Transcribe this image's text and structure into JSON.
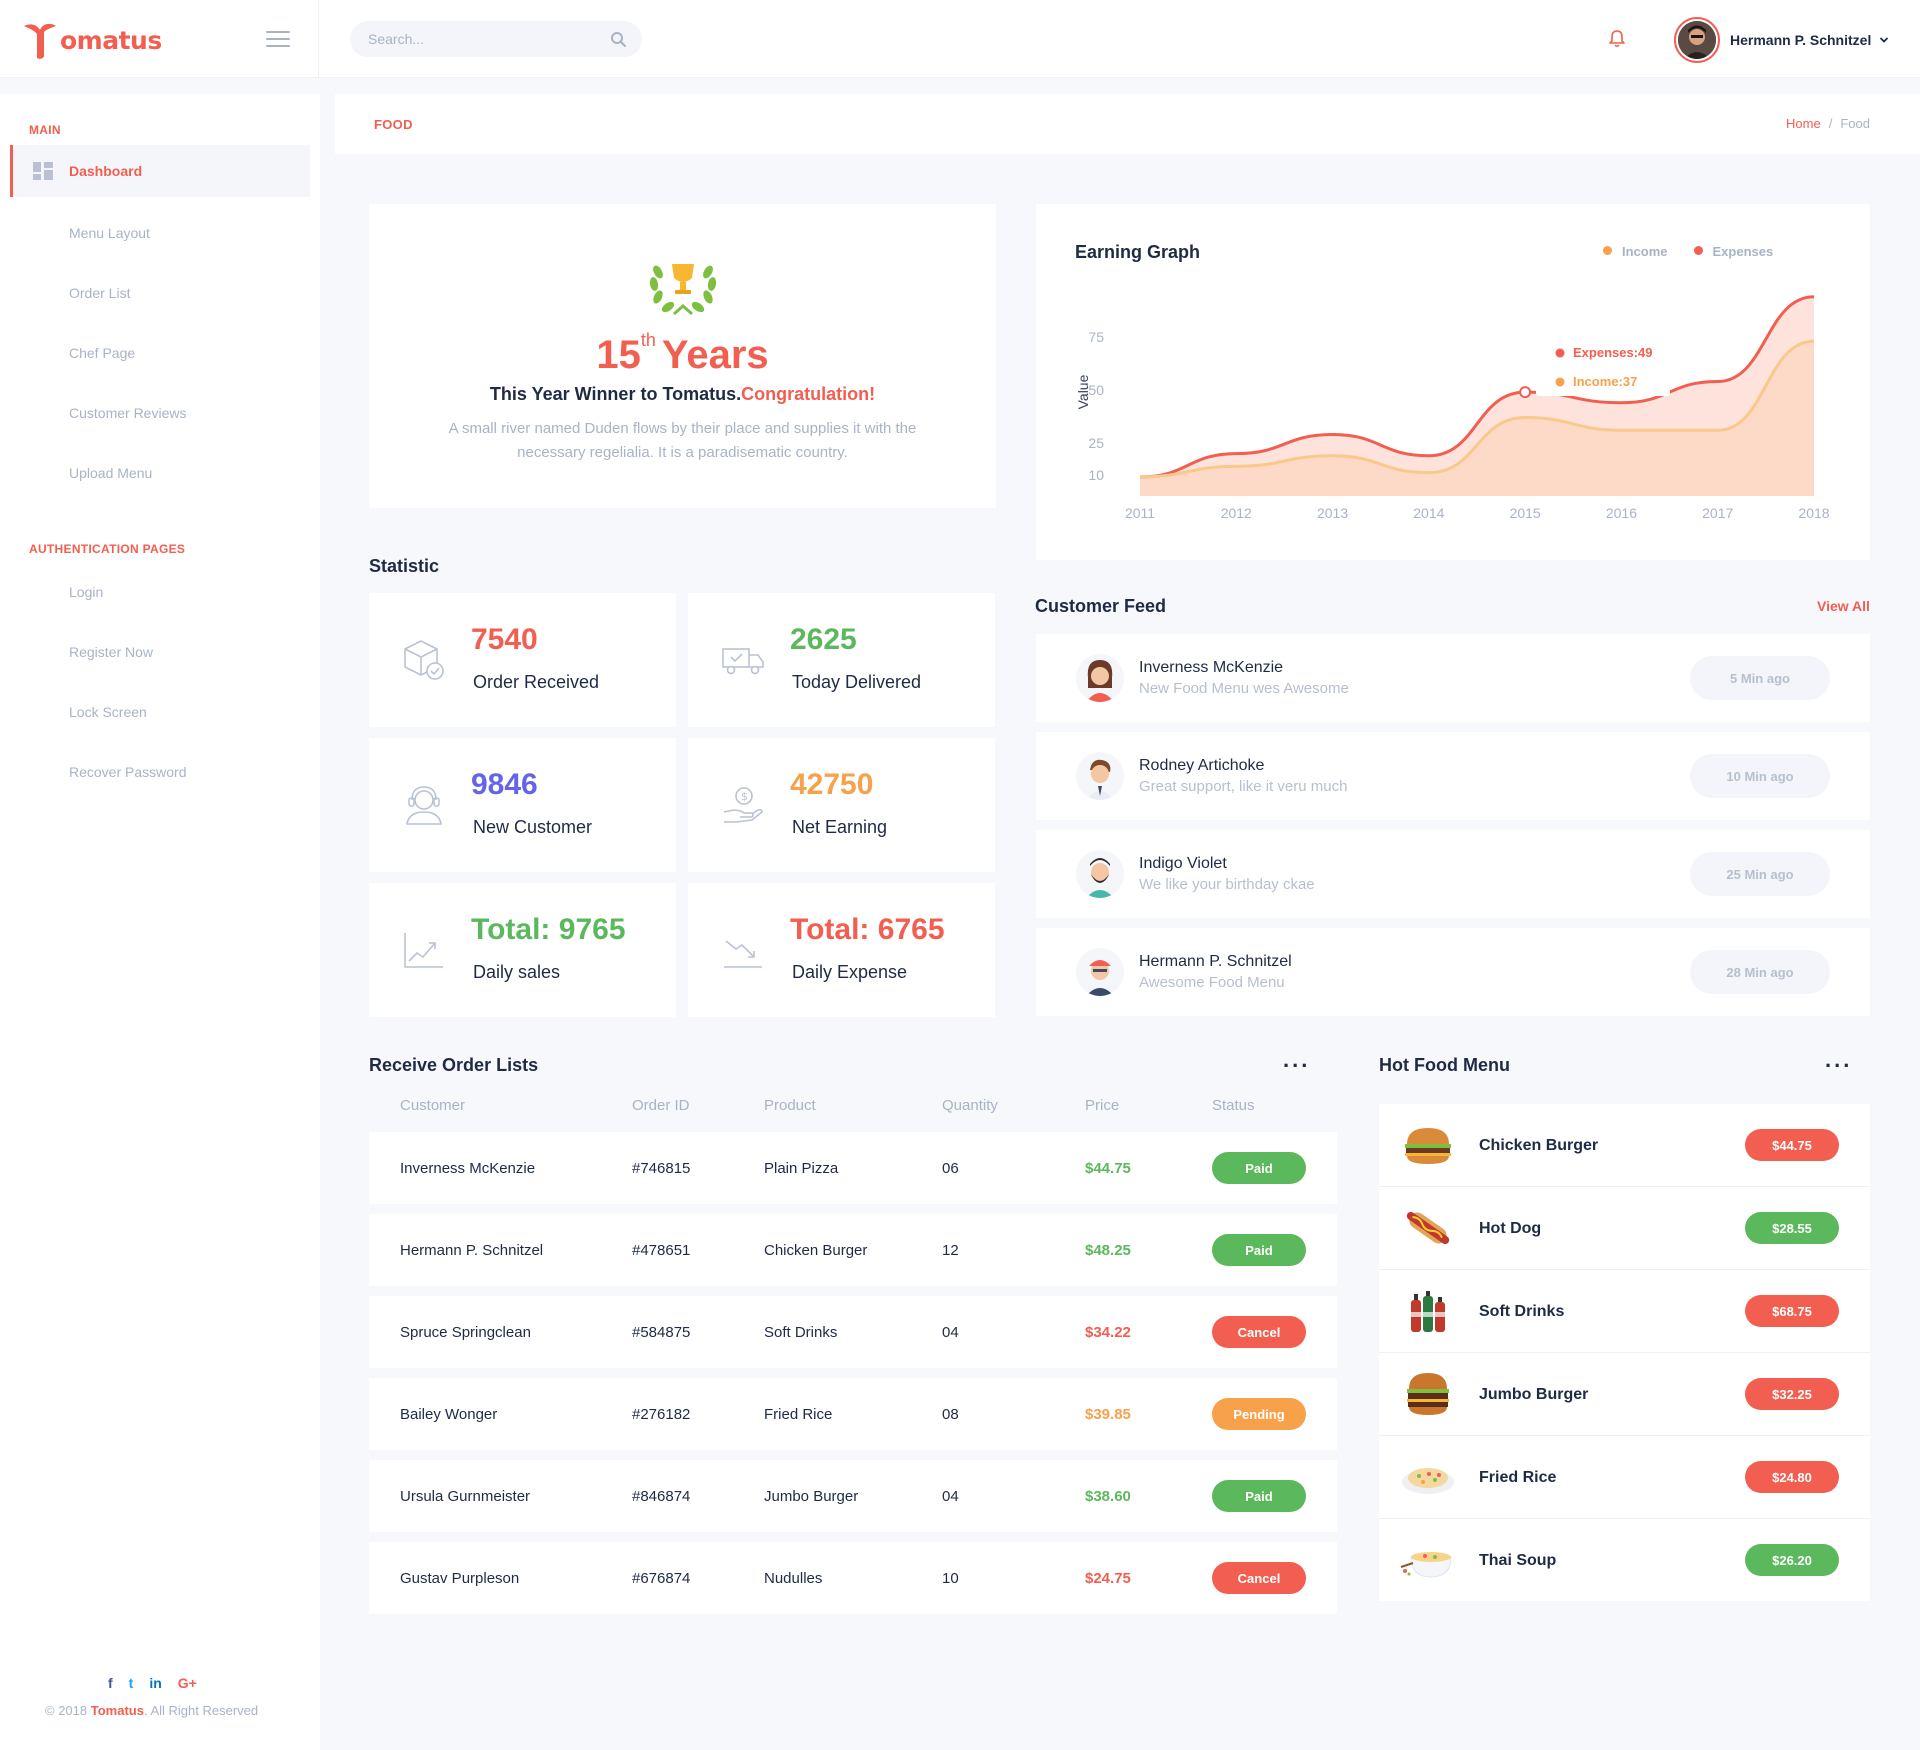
{
  "brand": {
    "name": "omatus"
  },
  "header": {
    "search_placeholder": "Search...",
    "user_name": "Hermann P. Schnitzel"
  },
  "sidebar": {
    "main_heading": "MAIN",
    "items": [
      {
        "label": "Dashboard"
      },
      {
        "label": "Menu Layout"
      },
      {
        "label": "Order List"
      },
      {
        "label": "Chef Page"
      },
      {
        "label": "Customer Reviews"
      },
      {
        "label": "Upload Menu"
      }
    ],
    "auth_heading": "AUTHENTICATION PAGES",
    "auth_items": [
      {
        "label": "Login"
      },
      {
        "label": "Register Now"
      },
      {
        "label": "Lock Screen"
      },
      {
        "label": "Recover Password"
      }
    ],
    "socials": {
      "facebook": "f",
      "twitter": "t",
      "linkedin": "in",
      "google": "G+"
    },
    "copyright_prefix": "© 2018 ",
    "copyright_brand": "Tomatus",
    "copyright_suffix": ". All Right Reserved"
  },
  "breadcrumb": {
    "title": "FOOD",
    "home": "Home",
    "sep": "/",
    "current": "Food"
  },
  "winner": {
    "number": "15",
    "suffix": "th",
    "years": "Years",
    "line": "This Year Winner to Tomatus.",
    "highlight": "Congratulation!",
    "description": "A small river named Duden flows by their place and supplies it with the necessary regelialia. It is a paradisematic country."
  },
  "chart_data": {
    "type": "area",
    "title": "Earning Graph",
    "ylabel": "Value",
    "x": [
      "2011",
      "2012",
      "2013",
      "2014",
      "2015",
      "2016",
      "2017",
      "2018"
    ],
    "yticks": [
      "75",
      "50",
      "25",
      "10"
    ],
    "series": [
      {
        "name": "Income",
        "color": "#f7a14b",
        "values": [
          9,
          14,
          19,
          11,
          37,
          31,
          31,
          73
        ]
      },
      {
        "name": "Expenses",
        "color": "#f25e50",
        "values": [
          9,
          20,
          29,
          19,
          49,
          44,
          54,
          94
        ]
      }
    ],
    "tooltip": {
      "expenses": "Expenses:49",
      "income": "Income:37"
    },
    "ylim": [
      0,
      100
    ]
  },
  "statistic": {
    "heading": "Statistic",
    "items": [
      {
        "value": "7540",
        "label": "Order Received",
        "color": "#f25e50",
        "icon": "box-icon"
      },
      {
        "value": "2625",
        "label": "Today Delivered",
        "color": "#5cb85c",
        "icon": "truck-icon"
      },
      {
        "value": "9846",
        "label": "New Customer",
        "color": "#6563e8",
        "icon": "headset-icon"
      },
      {
        "value": "42750",
        "label": "Net Earning",
        "color": "#f7a14b",
        "icon": "money-hand-icon"
      },
      {
        "value": "Total: 9765",
        "label": "Daily sales",
        "color": "#5cb85c",
        "icon": "trend-up-icon"
      },
      {
        "value": "Total: 6765",
        "label": "Daily Expense",
        "color": "#f25e50",
        "icon": "trend-down-icon"
      }
    ]
  },
  "feed": {
    "heading": "Customer Feed",
    "view_all": "View All",
    "items": [
      {
        "name": "Inverness McKenzie",
        "message": "New Food Menu wes Awesome",
        "time": "5 Min ago"
      },
      {
        "name": "Rodney Artichoke",
        "message": "Great support, like it veru much",
        "time": "10 Min ago"
      },
      {
        "name": "Indigo Violet",
        "message": "We like your birthday ckae",
        "time": "25 Min ago"
      },
      {
        "name": "Hermann P. Schnitzel",
        "message": "Awesome Food Menu",
        "time": "28 Min ago"
      }
    ]
  },
  "orders": {
    "heading": "Receive Order Lists",
    "more": "...",
    "columns": [
      "Customer",
      "Order ID",
      "Product",
      "Quantity",
      "Price",
      "Status"
    ],
    "rows": [
      {
        "customer": "Inverness McKenzie",
        "id": "#746815",
        "product": "Plain Pizza",
        "qty": "06",
        "price": "$44.75",
        "status": "Paid"
      },
      {
        "customer": "Hermann P. Schnitzel",
        "id": "#478651",
        "product": "Chicken Burger",
        "qty": "12",
        "price": "$48.25",
        "status": "Paid"
      },
      {
        "customer": "Spruce Springclean",
        "id": "#584875",
        "product": "Soft Drinks",
        "qty": "04",
        "price": "$34.22",
        "status": "Cancel"
      },
      {
        "customer": "Bailey Wonger",
        "id": "#276182",
        "product": "Fried Rice",
        "qty": "08",
        "price": "$39.85",
        "status": "Pending"
      },
      {
        "customer": "Ursula Gurnmeister",
        "id": "#846874",
        "product": "Jumbo Burger",
        "qty": "04",
        "price": "$38.60",
        "status": "Paid"
      },
      {
        "customer": "Gustav Purpleson",
        "id": "#676874",
        "product": "Nudulles",
        "qty": "10",
        "price": "$24.75",
        "status": "Cancel"
      }
    ],
    "status_colors": {
      "Paid": "#5cb85c",
      "Cancel": "#f25e50",
      "Pending": "#f7a14b"
    }
  },
  "hot_menu": {
    "heading": "Hot Food Menu",
    "more": "...",
    "items": [
      {
        "name": "Chicken Burger",
        "price": "$44.75",
        "color": "#f25e50",
        "icon": "burger-icon"
      },
      {
        "name": "Hot Dog",
        "price": "$28.55",
        "color": "#5cb85c",
        "icon": "hotdog-icon"
      },
      {
        "name": "Soft Drinks",
        "price": "$68.75",
        "color": "#f25e50",
        "icon": "drinks-icon"
      },
      {
        "name": "Jumbo Burger",
        "price": "$32.25",
        "color": "#f25e50",
        "icon": "burger-icon"
      },
      {
        "name": "Fried Rice",
        "price": "$24.80",
        "color": "#f25e50",
        "icon": "rice-icon"
      },
      {
        "name": "Thai Soup",
        "price": "$26.20",
        "color": "#5cb85c",
        "icon": "soup-icon"
      }
    ]
  }
}
